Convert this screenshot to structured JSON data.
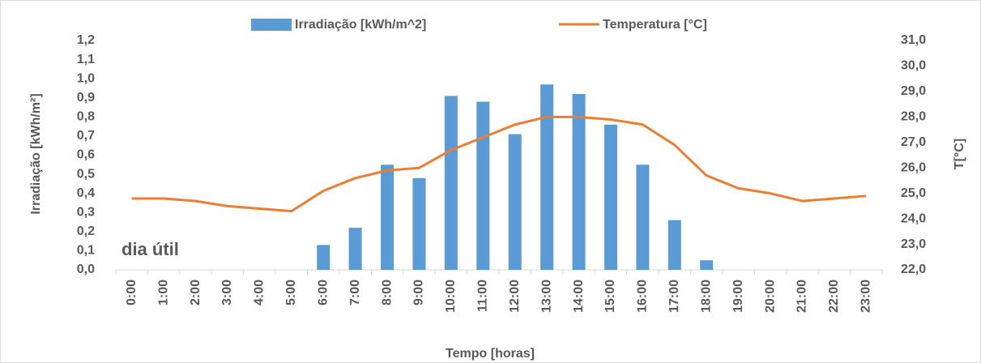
{
  "chart_data": {
    "type": "bar_line",
    "annotation": "dia útil",
    "x_label": "Tempo [horas]",
    "y_label": "Irradiação [kWh/m²]",
    "y2_label": "T[°C]",
    "categories": [
      "0:00",
      "1:00",
      "2:00",
      "3:00",
      "4:00",
      "5:00",
      "6:00",
      "7:00",
      "8:00",
      "9:00",
      "10:00",
      "11:00",
      "12:00",
      "13:00",
      "14:00",
      "15:00",
      "16:00",
      "17:00",
      "18:00",
      "19:00",
      "20:00",
      "21:00",
      "22:00",
      "23:00"
    ],
    "series": [
      {
        "name": "Irradiação [kWh/m^2]",
        "type": "bar",
        "color": "#5b9bd5",
        "values": [
          0,
          0,
          0,
          0,
          0,
          0,
          0.13,
          0.22,
          0.55,
          0.48,
          0.91,
          0.88,
          0.71,
          0.97,
          0.92,
          0.76,
          0.55,
          0.26,
          0.05,
          0,
          0,
          0,
          0,
          0
        ]
      },
      {
        "name": "Temperatura [°C]",
        "type": "line",
        "axis": "y2",
        "color": "#ed7d31",
        "values": [
          24.8,
          24.8,
          24.7,
          24.5,
          24.4,
          24.3,
          25.1,
          25.6,
          25.9,
          26.0,
          26.7,
          27.2,
          27.7,
          28.0,
          28.0,
          27.9,
          27.7,
          26.9,
          25.7,
          25.2,
          25.0,
          24.7,
          24.8,
          24.9
        ]
      }
    ],
    "ylim": [
      0,
      1.2
    ],
    "yticks": [
      {
        "value": 0,
        "label": "0,0"
      },
      {
        "value": 0.1,
        "label": "0,1"
      },
      {
        "value": 0.2,
        "label": "0,2"
      },
      {
        "value": 0.3,
        "label": "0,3"
      },
      {
        "value": 0.4,
        "label": "0,4"
      },
      {
        "value": 0.5,
        "label": "0,5"
      },
      {
        "value": 0.6,
        "label": "0,6"
      },
      {
        "value": 0.7,
        "label": "0,7"
      },
      {
        "value": 0.8,
        "label": "0,8"
      },
      {
        "value": 0.9,
        "label": "0,9"
      },
      {
        "value": 1,
        "label": "1,0"
      },
      {
        "value": 1.1,
        "label": "1,1"
      },
      {
        "value": 1.2,
        "label": "1,2"
      }
    ],
    "y2lim": [
      22,
      31
    ],
    "y2ticks": [
      {
        "value": 22,
        "label": "22,0"
      },
      {
        "value": 23,
        "label": "23,0"
      },
      {
        "value": 24,
        "label": "24,0"
      },
      {
        "value": 25,
        "label": "25,0"
      },
      {
        "value": 26,
        "label": "26,0"
      },
      {
        "value": 27,
        "label": "27,0"
      },
      {
        "value": 28,
        "label": "28,0"
      },
      {
        "value": 29,
        "label": "29,0"
      },
      {
        "value": 30,
        "label": "30,0"
      },
      {
        "value": 31,
        "label": "31,0"
      }
    ],
    "grid": false,
    "legend": "top"
  }
}
